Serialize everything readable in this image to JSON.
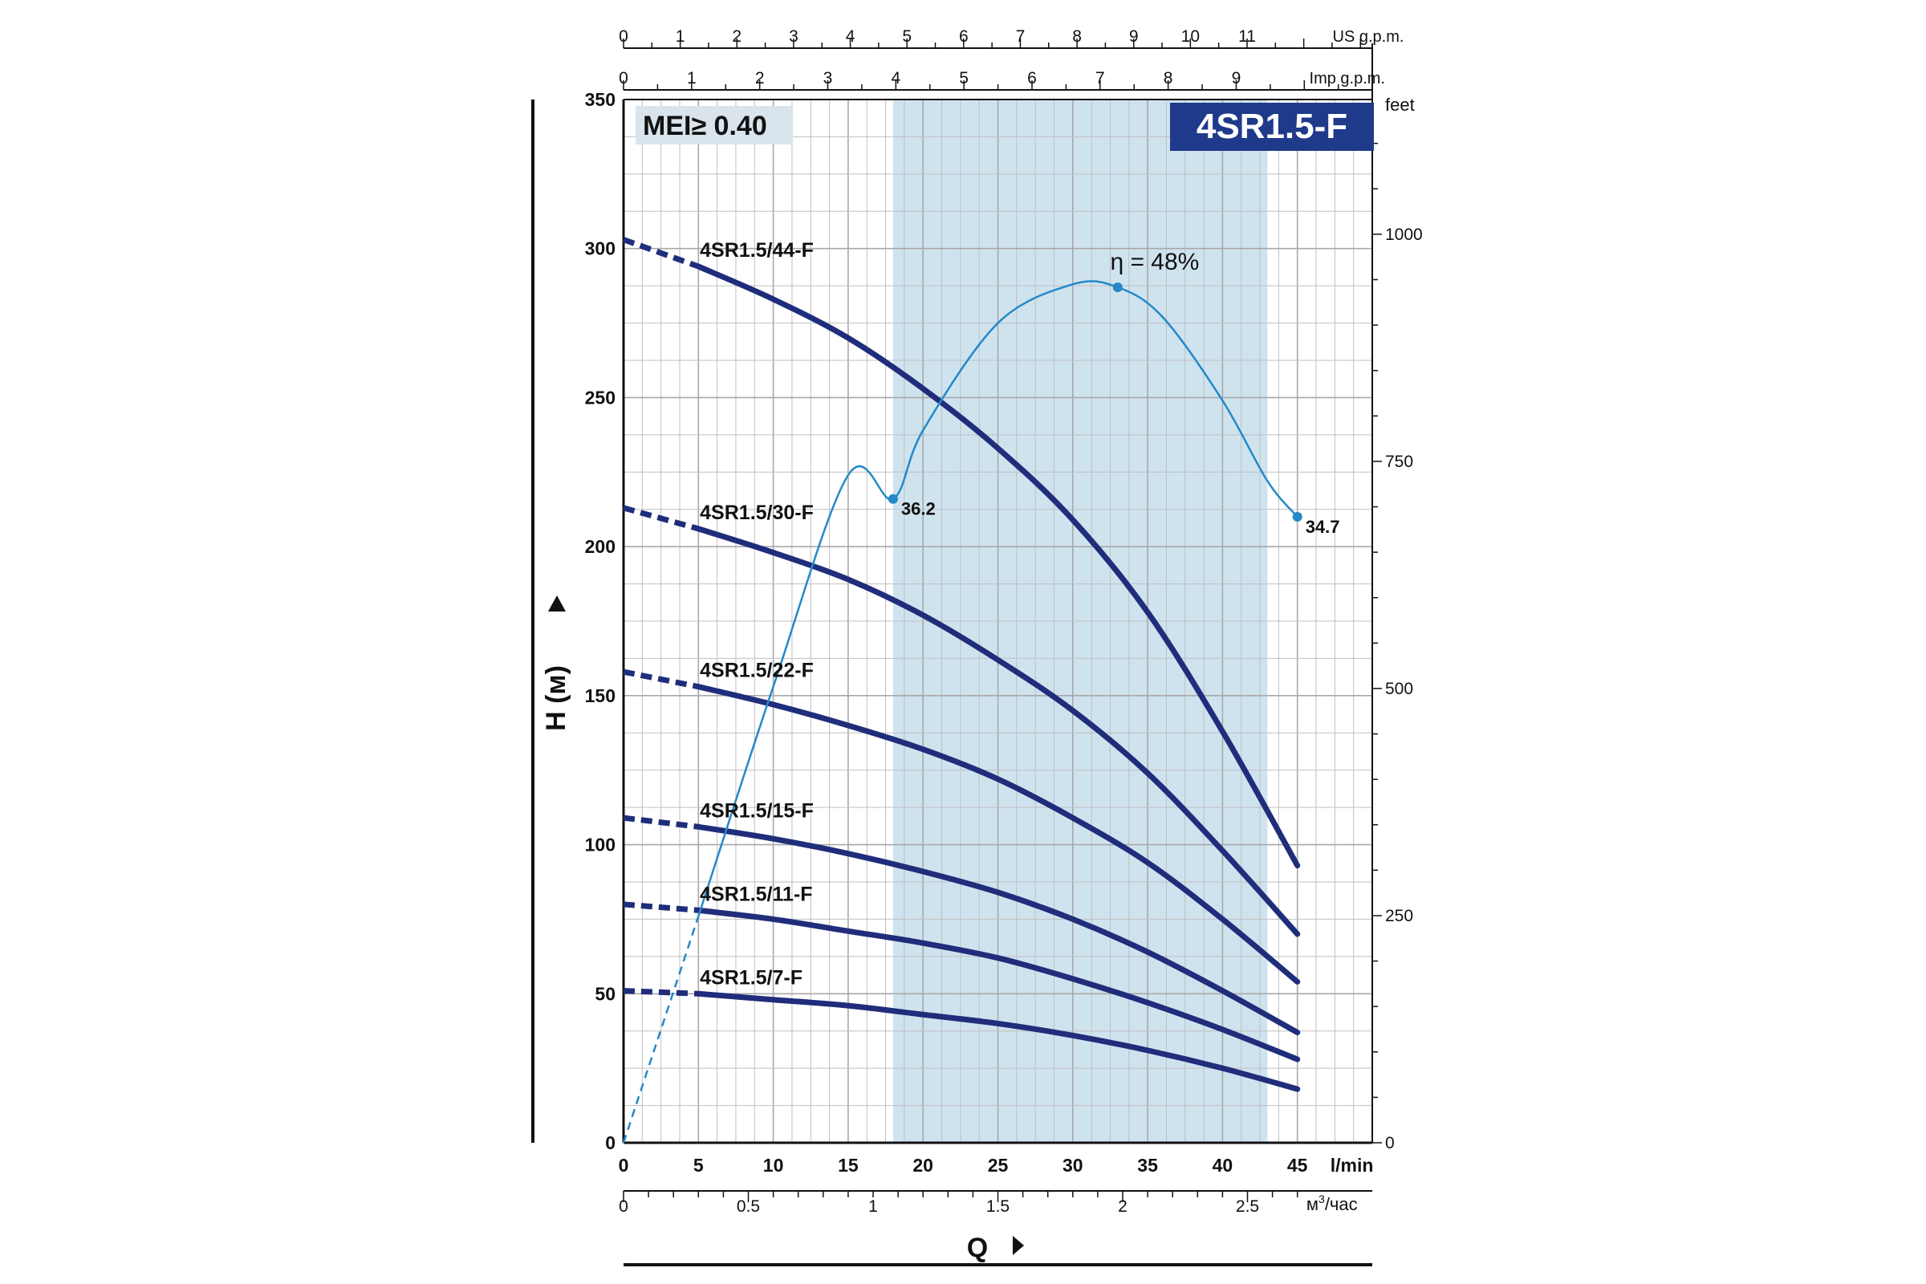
{
  "chart_data": {
    "type": "line",
    "title_badge": "4SR1.5-F",
    "mei_label": "MEI≥ 0.40",
    "ylabel": "H (м)",
    "xlabel": "Q",
    "x_unit": "l/min",
    "xlim": [
      0,
      50
    ],
    "ylim": [
      0,
      350
    ],
    "bottom_axis": {
      "ticks": [
        "0",
        "5",
        "10",
        "15",
        "20",
        "25",
        "30",
        "35",
        "40",
        "45"
      ],
      "unit": "l/min"
    },
    "m3_axis": {
      "ticks": [
        "0",
        "0.5",
        "1",
        "1.5",
        "2",
        "2.5"
      ],
      "unit_base": "м",
      "unit_sup": "3",
      "unit_rest": "/час"
    },
    "left_axis": {
      "ticks": [
        "0",
        "50",
        "100",
        "150",
        "200",
        "250",
        "300",
        "350"
      ]
    },
    "right_axis": {
      "ticks": [
        "0",
        "250",
        "500",
        "750",
        "1000"
      ],
      "unit": "feet"
    },
    "us_axis": {
      "ticks": [
        "0",
        "1",
        "2",
        "3",
        "4",
        "5",
        "6",
        "7",
        "8",
        "9",
        "10",
        "11"
      ],
      "unit": "US g.p.m."
    },
    "imp_axis": {
      "ticks": [
        "0",
        "1",
        "2",
        "3",
        "4",
        "5",
        "6",
        "7",
        "8",
        "9"
      ],
      "unit": "Imp g.p.m."
    },
    "operating_range": [
      18,
      43
    ],
    "series": [
      {
        "name": "4SR1.5/44-F",
        "x": [
          0,
          5,
          10,
          15,
          20,
          25,
          30,
          35,
          40,
          45
        ],
        "y": [
          303,
          294,
          283,
          270,
          253,
          233,
          209,
          178,
          138,
          93
        ]
      },
      {
        "name": "4SR1.5/30-F",
        "x": [
          0,
          5,
          10,
          15,
          20,
          25,
          30,
          35,
          40,
          45
        ],
        "y": [
          213,
          206,
          198,
          189,
          177,
          162,
          145,
          124,
          98,
          70
        ]
      },
      {
        "name": "4SR1.5/22-F",
        "x": [
          0,
          5,
          10,
          15,
          20,
          25,
          30,
          35,
          40,
          45
        ],
        "y": [
          158,
          153,
          147,
          140,
          132,
          122,
          109,
          94,
          75,
          54
        ]
      },
      {
        "name": "4SR1.5/15-F",
        "x": [
          0,
          5,
          10,
          15,
          20,
          25,
          30,
          35,
          40,
          45
        ],
        "y": [
          109,
          106,
          102,
          97,
          91,
          84,
          75,
          64,
          51,
          37
        ]
      },
      {
        "name": "4SR1.5/11-F",
        "x": [
          0,
          5,
          10,
          15,
          20,
          25,
          30,
          35,
          40,
          45
        ],
        "y": [
          80,
          78,
          75,
          71,
          67,
          62,
          55,
          47,
          38,
          28
        ]
      },
      {
        "name": "4SR1.5/7-F",
        "x": [
          0,
          5,
          10,
          15,
          20,
          25,
          30,
          35,
          40,
          45
        ],
        "y": [
          51,
          50,
          48,
          46,
          43,
          40,
          36,
          31,
          25,
          18
        ]
      }
    ],
    "efficiency": {
      "label": "η = 48%",
      "x": [
        0,
        5,
        10,
        15,
        18,
        20,
        25,
        30,
        33,
        36,
        40,
        43,
        45
      ],
      "y": [
        0,
        76,
        153,
        224,
        216,
        239,
        275,
        288,
        287,
        277,
        249,
        222,
        210
      ],
      "points": [
        {
          "x": 18,
          "y": 216,
          "label": "36.2"
        },
        {
          "x": 33,
          "y": 287,
          "label": ""
        },
        {
          "x": 45,
          "y": 210,
          "label": "34.7"
        }
      ]
    },
    "colors": {
      "curve": "#1f2d7b",
      "efficiency": "#2389c8",
      "band": "#cfe3ef",
      "grid": "#bfbfbf",
      "badge": "#1f3a8a",
      "mei_bg": "#d9e4ec"
    }
  }
}
